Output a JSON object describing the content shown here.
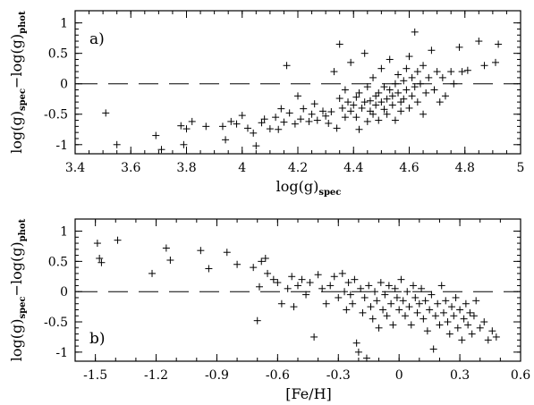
{
  "chart_data": [
    {
      "type": "scatter",
      "panel_label": "a)",
      "xlabel": "log(g)",
      "xlabel_sub": "spec",
      "ylabel_parts": [
        "log(g)",
        "spec",
        "−log(g)",
        "phot"
      ],
      "xlim": [
        3.4,
        5.0
      ],
      "ylim": [
        -1.15,
        1.2
      ],
      "xticks": [
        "3.4",
        "3.6",
        "3.8",
        "4",
        "4.2",
        "4.4",
        "4.6",
        "4.8",
        "5"
      ],
      "yticks": [
        "1",
        "0.5",
        "0",
        "-0.5",
        "-1"
      ],
      "reference_line": 0,
      "points": [
        [
          3.51,
          -0.48
        ],
        [
          3.55,
          -1.0
        ],
        [
          3.69,
          -0.85
        ],
        [
          3.71,
          -1.08
        ],
        [
          3.78,
          -0.69
        ],
        [
          3.79,
          -1.0
        ],
        [
          3.8,
          -0.74
        ],
        [
          3.82,
          -0.62
        ],
        [
          3.87,
          -0.7
        ],
        [
          3.93,
          -0.7
        ],
        [
          3.94,
          -0.92
        ],
        [
          3.96,
          -0.62
        ],
        [
          3.98,
          -0.66
        ],
        [
          4.0,
          -0.52
        ],
        [
          4.02,
          -0.73
        ],
        [
          4.04,
          -0.81
        ],
        [
          4.05,
          -1.02
        ],
        [
          4.07,
          -0.64
        ],
        [
          4.08,
          -0.58
        ],
        [
          4.1,
          -0.74
        ],
        [
          4.12,
          -0.55
        ],
        [
          4.13,
          -0.75
        ],
        [
          4.14,
          -0.41
        ],
        [
          4.15,
          -0.63
        ],
        [
          4.16,
          0.3
        ],
        [
          4.17,
          -0.48
        ],
        [
          4.19,
          -0.66
        ],
        [
          4.2,
          -0.2
        ],
        [
          4.21,
          -0.58
        ],
        [
          4.22,
          -0.41
        ],
        [
          4.24,
          -0.62
        ],
        [
          4.25,
          -0.5
        ],
        [
          4.26,
          -0.33
        ],
        [
          4.27,
          -0.6
        ],
        [
          4.29,
          -0.45
        ],
        [
          4.3,
          -0.53
        ],
        [
          4.31,
          -0.65
        ],
        [
          4.32,
          -0.46
        ],
        [
          4.33,
          0.2
        ],
        [
          4.34,
          -0.73
        ],
        [
          4.35,
          -0.24
        ],
        [
          4.35,
          0.65
        ],
        [
          4.36,
          -0.4
        ],
        [
          4.37,
          -0.55
        ],
        [
          4.37,
          -0.1
        ],
        [
          4.38,
          -0.3
        ],
        [
          4.39,
          0.35
        ],
        [
          4.39,
          -0.45
        ],
        [
          4.4,
          -0.35
        ],
        [
          4.41,
          -0.55
        ],
        [
          4.41,
          -0.22
        ],
        [
          4.42,
          -0.75
        ],
        [
          4.42,
          -0.15
        ],
        [
          4.43,
          -0.4
        ],
        [
          4.44,
          -0.3
        ],
        [
          4.44,
          0.5
        ],
        [
          4.45,
          -0.62
        ],
        [
          4.45,
          -0.05
        ],
        [
          4.46,
          -0.45
        ],
        [
          4.46,
          -0.28
        ],
        [
          4.47,
          0.1
        ],
        [
          4.47,
          -0.5
        ],
        [
          4.48,
          -0.2
        ],
        [
          4.48,
          -0.35
        ],
        [
          4.49,
          -0.15
        ],
        [
          4.49,
          -0.6
        ],
        [
          4.5,
          -0.3
        ],
        [
          4.5,
          0.25
        ],
        [
          4.51,
          -0.42
        ],
        [
          4.51,
          -0.05
        ],
        [
          4.52,
          -0.25
        ],
        [
          4.52,
          -0.5
        ],
        [
          4.53,
          -0.1
        ],
        [
          4.53,
          0.4
        ],
        [
          4.54,
          -0.35
        ],
        [
          4.54,
          -0.2
        ],
        [
          4.55,
          0.0
        ],
        [
          4.55,
          -0.6
        ],
        [
          4.56,
          -0.15
        ],
        [
          4.56,
          0.15
        ],
        [
          4.57,
          -0.3
        ],
        [
          4.57,
          -0.45
        ],
        [
          4.58,
          0.05
        ],
        [
          4.58,
          -0.25
        ],
        [
          4.59,
          0.25
        ],
        [
          4.59,
          -0.1
        ],
        [
          4.6,
          -0.4
        ],
        [
          4.6,
          0.45
        ],
        [
          4.61,
          -0.2
        ],
        [
          4.61,
          0.1
        ],
        [
          4.62,
          -0.05
        ],
        [
          4.62,
          0.85
        ],
        [
          4.63,
          -0.3
        ],
        [
          4.63,
          0.2
        ],
        [
          4.64,
          0.0
        ],
        [
          4.65,
          -0.5
        ],
        [
          4.65,
          0.3
        ],
        [
          4.66,
          -0.15
        ],
        [
          4.67,
          0.1
        ],
        [
          4.68,
          0.55
        ],
        [
          4.69,
          -0.1
        ],
        [
          4.7,
          0.2
        ],
        [
          4.71,
          -0.3
        ],
        [
          4.72,
          0.1
        ],
        [
          4.73,
          -0.2
        ],
        [
          4.75,
          0.2
        ],
        [
          4.76,
          0.0
        ],
        [
          4.78,
          0.6
        ],
        [
          4.79,
          0.2
        ],
        [
          4.81,
          0.22
        ],
        [
          4.85,
          0.7
        ],
        [
          4.87,
          0.3
        ],
        [
          4.91,
          0.35
        ],
        [
          4.92,
          0.65
        ]
      ]
    },
    {
      "type": "scatter",
      "panel_label": "b)",
      "xlabel": "[Fe/H]",
      "ylabel_parts": [
        "log(g)",
        "spec",
        "−log(g)",
        "phot"
      ],
      "xlim": [
        -1.6,
        0.6
      ],
      "ylim": [
        -1.15,
        1.2
      ],
      "xticks": [
        "-1.5",
        "-1.2",
        "-0.9",
        "-0.6",
        "-0.3",
        "0",
        "0.3",
        "0.6"
      ],
      "yticks": [
        "1",
        "0.5",
        "0",
        "-0.5",
        "-1"
      ],
      "reference_line": 0,
      "points": [
        [
          -1.49,
          0.8
        ],
        [
          -1.48,
          0.55
        ],
        [
          -1.47,
          0.48
        ],
        [
          -1.39,
          0.85
        ],
        [
          -1.22,
          0.3
        ],
        [
          -1.15,
          0.72
        ],
        [
          -1.13,
          0.52
        ],
        [
          -0.98,
          0.68
        ],
        [
          -0.94,
          0.38
        ],
        [
          -0.85,
          0.65
        ],
        [
          -0.8,
          0.45
        ],
        [
          -0.72,
          0.4
        ],
        [
          -0.7,
          -0.48
        ],
        [
          -0.69,
          0.08
        ],
        [
          -0.68,
          0.5
        ],
        [
          -0.66,
          0.55
        ],
        [
          -0.65,
          0.3
        ],
        [
          -0.62,
          0.2
        ],
        [
          -0.6,
          0.15
        ],
        [
          -0.58,
          -0.2
        ],
        [
          -0.55,
          0.05
        ],
        [
          -0.53,
          0.25
        ],
        [
          -0.52,
          -0.25
        ],
        [
          -0.5,
          0.1
        ],
        [
          -0.48,
          0.2
        ],
        [
          -0.46,
          -0.05
        ],
        [
          -0.44,
          0.15
        ],
        [
          -0.42,
          -0.75
        ],
        [
          -0.4,
          0.28
        ],
        [
          -0.38,
          0.05
        ],
        [
          -0.36,
          -0.2
        ],
        [
          -0.34,
          0.1
        ],
        [
          -0.32,
          0.25
        ],
        [
          -0.3,
          -0.1
        ],
        [
          -0.28,
          0.3
        ],
        [
          -0.27,
          0.0
        ],
        [
          -0.26,
          -0.3
        ],
        [
          -0.25,
          0.15
        ],
        [
          -0.24,
          -0.05
        ],
        [
          -0.23,
          -0.2
        ],
        [
          -0.22,
          0.2
        ],
        [
          -0.21,
          -0.85
        ],
        [
          -0.2,
          -1.0
        ],
        [
          -0.19,
          0.05
        ],
        [
          -0.18,
          -0.35
        ],
        [
          -0.17,
          -0.1
        ],
        [
          -0.16,
          -1.1
        ],
        [
          -0.15,
          0.1
        ],
        [
          -0.14,
          -0.25
        ],
        [
          -0.13,
          -0.45
        ],
        [
          -0.12,
          0.0
        ],
        [
          -0.11,
          -0.15
        ],
        [
          -0.1,
          -0.6
        ],
        [
          -0.09,
          0.15
        ],
        [
          -0.08,
          -0.3
        ],
        [
          -0.07,
          -0.05
        ],
        [
          -0.06,
          -0.4
        ],
        [
          -0.05,
          0.1
        ],
        [
          -0.04,
          -0.2
        ],
        [
          -0.03,
          -0.55
        ],
        [
          -0.02,
          0.05
        ],
        [
          -0.01,
          -0.1
        ],
        [
          0.0,
          -0.3
        ],
        [
          0.01,
          0.2
        ],
        [
          0.02,
          -0.15
        ],
        [
          0.03,
          -0.4
        ],
        [
          0.04,
          0.0
        ],
        [
          0.05,
          -0.25
        ],
        [
          0.06,
          -0.55
        ],
        [
          0.07,
          0.1
        ],
        [
          0.08,
          -0.1
        ],
        [
          0.09,
          -0.35
        ],
        [
          0.1,
          -0.2
        ],
        [
          0.11,
          0.05
        ],
        [
          0.12,
          -0.45
        ],
        [
          0.13,
          -0.15
        ],
        [
          0.14,
          -0.65
        ],
        [
          0.15,
          -0.3
        ],
        [
          0.16,
          -0.05
        ],
        [
          0.17,
          -0.95
        ],
        [
          0.18,
          -0.4
        ],
        [
          0.19,
          -0.2
        ],
        [
          0.2,
          -0.55
        ],
        [
          0.21,
          0.1
        ],
        [
          0.22,
          -0.35
        ],
        [
          0.23,
          -0.15
        ],
        [
          0.24,
          -0.5
        ],
        [
          0.25,
          -0.7
        ],
        [
          0.26,
          -0.25
        ],
        [
          0.27,
          -0.4
        ],
        [
          0.28,
          -0.1
        ],
        [
          0.29,
          -0.6
        ],
        [
          0.3,
          -0.3
        ],
        [
          0.31,
          -0.8
        ],
        [
          0.32,
          -0.45
        ],
        [
          0.33,
          -0.2
        ],
        [
          0.34,
          -0.55
        ],
        [
          0.35,
          -0.35
        ],
        [
          0.36,
          -0.7
        ],
        [
          0.37,
          -0.4
        ],
        [
          0.38,
          -0.15
        ],
        [
          0.4,
          -0.6
        ],
        [
          0.42,
          -0.5
        ],
        [
          0.44,
          -0.8
        ],
        [
          0.46,
          -0.65
        ],
        [
          0.48,
          -0.75
        ]
      ]
    }
  ]
}
